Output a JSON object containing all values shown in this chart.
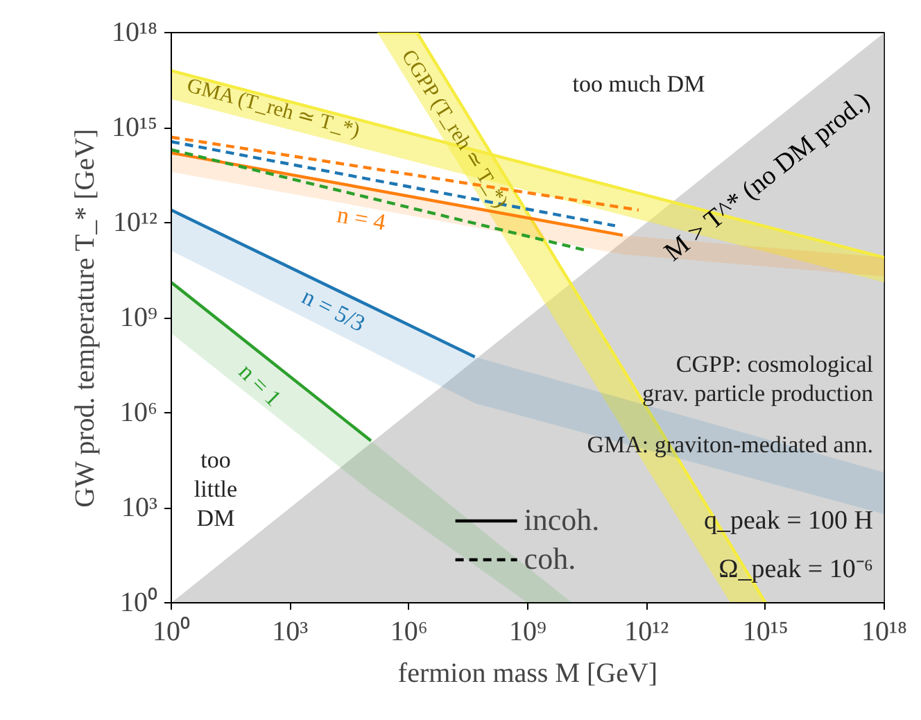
{
  "chart_data": {
    "type": "line",
    "xlabel": "fermion mass M [GeV]",
    "ylabel": "GW prod. temperature T_* [GeV]",
    "log": "xy",
    "grid": false,
    "legend": "bottom",
    "xlim": [
      1,
      1e+18
    ],
    "ylim": [
      1,
      1e+18
    ],
    "xticks": [
      {
        "value": 1,
        "label": "10⁰"
      },
      {
        "value": 1000.0,
        "label": "10³"
      },
      {
        "value": 1000000.0,
        "label": "10⁶"
      },
      {
        "value": 1000000000.0,
        "label": "10⁹"
      },
      {
        "value": 1000000000000.0,
        "label": "10¹²"
      },
      {
        "value": 1000000000000000.0,
        "label": "10¹⁵"
      },
      {
        "value": 1e+18,
        "label": "10¹⁸"
      }
    ],
    "yticks": [
      {
        "value": 1,
        "label": "10⁰"
      },
      {
        "value": 1000.0,
        "label": "10³"
      },
      {
        "value": 1000000.0,
        "label": "10⁶"
      },
      {
        "value": 1000000000.0,
        "label": "10⁹"
      },
      {
        "value": 1000000000000.0,
        "label": "10¹²"
      },
      {
        "value": 1000000000000000.0,
        "label": "10¹⁵"
      },
      {
        "value": 1e+18,
        "label": "10¹⁸"
      }
    ],
    "series": [
      {
        "type": "area",
        "color": "#b3b3b3",
        "x": [
          1,
          1e+18
        ],
        "values": [
          1,
          1e+18
        ]
      },
      {
        "color": "#f5ec40",
        "line_style": "solid",
        "x": [
          1,
          1e+18
        ],
        "values": [
          6.3e+16,
          79000000000.0
        ],
        "upper": [
          6.3e+16,
          79000000000.0
        ],
        "lower": [
          7900000000000000.0,
          13000000000.0
        ]
      },
      {
        "color": "#f5ec40",
        "line_style": "solid",
        "x": [
          160000.0,
          1600000.0,
          130000000000000.0,
          1000000000000000.0
        ],
        "values": [
          1e+18,
          1e+18,
          69,
          1
        ],
        "upper": [
          1e+18,
          1e+18,
          69,
          1
        ],
        "lower": [
          1e+18,
          9500000000000000.0,
          1,
          1
        ]
      },
      {
        "color": "#ff7f0e",
        "line_style": "solid",
        "x": [
          1,
          250000000000.0,
          1e+18
        ],
        "values": [
          160000000000000.0,
          400000000000.0,
          null
        ],
        "upper": [
          160000000000000.0,
          400000000000.0,
          80000000000.0
        ],
        "lower": [
          40000000000000.0,
          100000000000.0,
          20000000000.0
        ]
      },
      {
        "color": "#1f77b4",
        "line_style": "solid",
        "x": [
          1,
          46000000.0,
          1e+18
        ],
        "values": [
          2500000000000.0,
          58000000.0,
          null
        ],
        "upper": [
          2500000000000.0,
          58000000.0,
          13000.0
        ],
        "lower": [
          130000000000.0,
          2000000.0,
          630
        ]
      },
      {
        "color": "#2ca02c",
        "line_style": "solid",
        "x": [
          1,
          110000.0,
          1000000000.0,
          13000000000.0
        ],
        "values": [
          13000000000.0,
          130000.0,
          null,
          null
        ],
        "upper": [
          13000000000.0,
          130000.0,
          13,
          1
        ],
        "lower": [
          320000000.0,
          3200.0,
          1,
          1
        ]
      },
      {
        "color": "#ff7f0e",
        "line_style": "dashed",
        "x": [
          1,
          630000000000.0
        ],
        "values": [
          500000000000000.0,
          2500000000000.0
        ]
      },
      {
        "color": "#1f77b4",
        "line_style": "dashed",
        "x": [
          1,
          160000000000.0
        ],
        "values": [
          360000000000000.0,
          800000000000.0
        ]
      },
      {
        "color": "#2ca02c",
        "line_style": "dashed",
        "x": [
          1,
          32000000000.0
        ],
        "values": [
          200000000000000.0,
          130000000000.0
        ]
      },
      {
        "name": "incoh.",
        "color": "#000000",
        "line_style": "solid"
      },
      {
        "name": "coh.",
        "color": "#000000",
        "line_style": "dashed"
      }
    ],
    "annotations": [
      "GMA (T_reh ≃ T_*)",
      "CGPP (T_reh ≃ T_*)",
      "n = 4",
      "n = 5/3",
      "n = 1",
      "M > T^* (no DM prod.)",
      "too much DM",
      "too\nlittle\nDM",
      "CGPP: cosmological",
      "grav. particle production",
      "GMA: graviton-mediated ann.",
      "q_peak = 100 H",
      "Ω_peak = 10⁻⁶"
    ]
  }
}
